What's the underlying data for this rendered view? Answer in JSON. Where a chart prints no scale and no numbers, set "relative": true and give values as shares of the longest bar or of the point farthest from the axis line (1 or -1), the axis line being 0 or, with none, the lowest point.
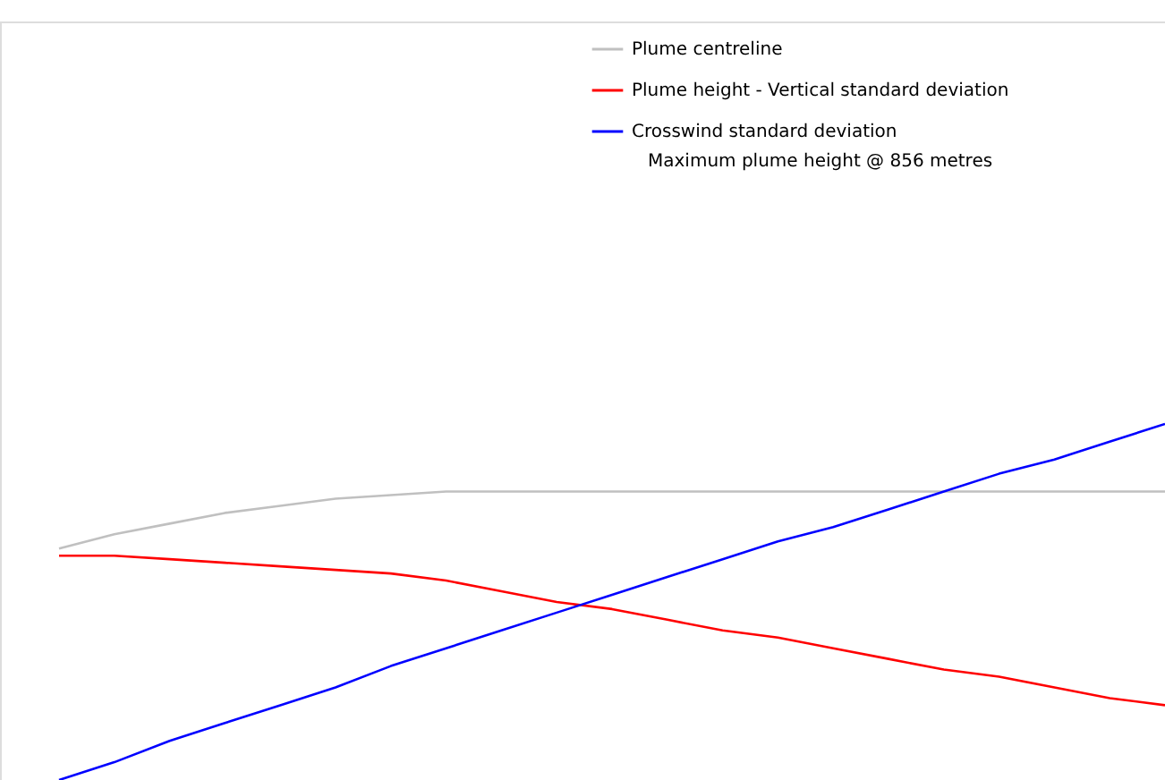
{
  "chart_data": {
    "type": "line",
    "relative": true,
    "legend": "top",
    "grid": false,
    "marker": "none",
    "line_style": "solid",
    "categories": [
      null,
      null,
      null,
      null,
      null,
      null,
      null,
      null,
      null,
      null,
      null,
      null,
      null,
      null,
      null,
      null,
      null,
      null,
      null,
      null,
      null
    ],
    "series": [
      {
        "name": "Plume centreline",
        "color": "#c0c0c0",
        "values": [
          0.65,
          0.69,
          0.72,
          0.75,
          0.77,
          0.79,
          0.8,
          0.81,
          0.81,
          0.81,
          0.81,
          0.81,
          0.81,
          0.81,
          0.81,
          0.81,
          0.81,
          0.81,
          0.81,
          0.81,
          0.81
        ]
      },
      {
        "name": "Plume height - Vertical standard deviation",
        "color": "#ff0000",
        "values": [
          0.63,
          0.63,
          0.62,
          0.61,
          0.6,
          0.59,
          0.58,
          0.56,
          0.53,
          0.5,
          0.48,
          0.45,
          0.42,
          0.4,
          0.37,
          0.34,
          0.31,
          0.29,
          0.26,
          0.23,
          0.21
        ]
      },
      {
        "name": "Crosswind standard deviation",
        "color": "#0000ff",
        "values": [
          0,
          0.05,
          0.11,
          0.16,
          0.21,
          0.26,
          0.32,
          0.37,
          0.42,
          0.47,
          0.52,
          0.57,
          0.62,
          0.67,
          0.71,
          0.76,
          0.81,
          0.86,
          0.9,
          0.95,
          1
        ]
      }
    ],
    "annotations": [
      "Maximum plume height @   856 metres"
    ]
  }
}
